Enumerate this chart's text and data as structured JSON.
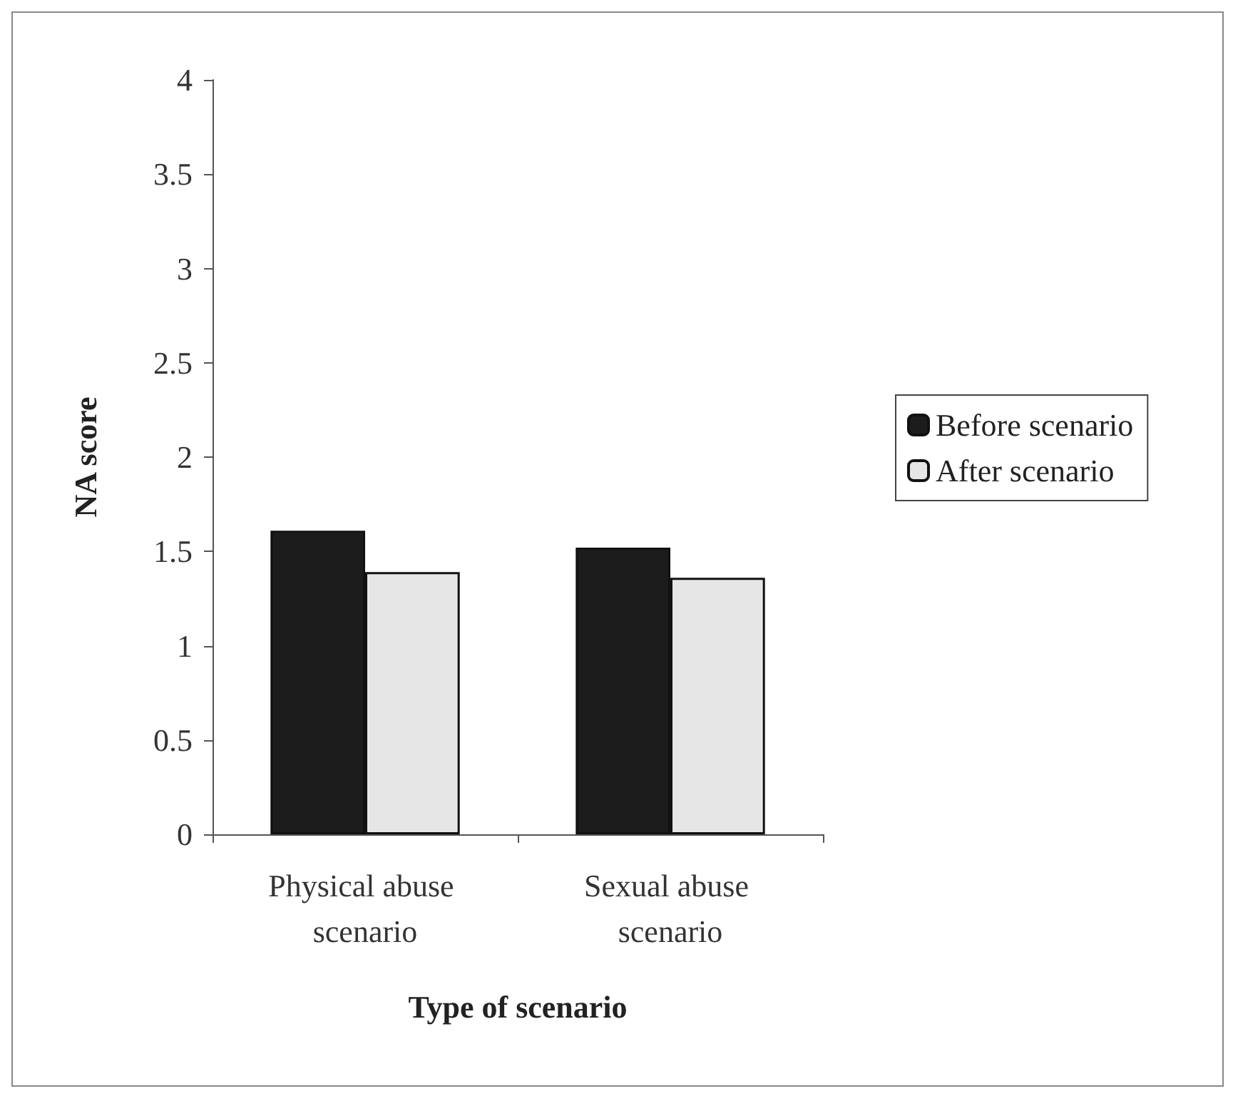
{
  "chart_data": {
    "type": "bar",
    "xlabel": "Type of scenario",
    "ylabel": "NA score",
    "categories": [
      "Physical abuse scenario",
      "Sexual abuse scenario"
    ],
    "series": [
      {
        "name": "Before scenario",
        "color": "#1c1c1c",
        "values": [
          1.61,
          1.52
        ]
      },
      {
        "name": "After scenario",
        "color": "#e6e6e6",
        "values": [
          1.39,
          1.36
        ]
      }
    ],
    "ylim": [
      0,
      4
    ],
    "yticks": [
      0,
      0.5,
      1,
      1.5,
      2,
      2.5,
      3,
      3.5,
      4
    ],
    "grid": false,
    "legend": "right"
  }
}
